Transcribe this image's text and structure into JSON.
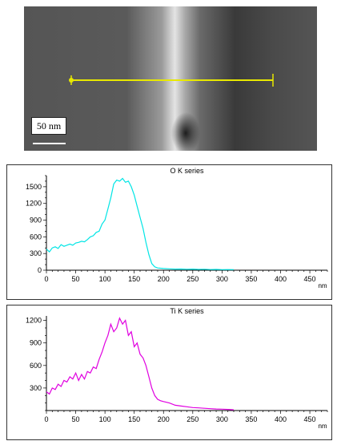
{
  "image": {
    "scale_label": "50 nm",
    "colors": {
      "background": "#4a4a4a",
      "profile_line": "#e8e800",
      "scale_bar": "#ffffff"
    }
  },
  "chart_data": [
    {
      "type": "line",
      "title": "O K series",
      "xlabel": "nm",
      "color": "#00e5e5",
      "xlim": [
        0,
        480
      ],
      "ylim": [
        0,
        1700
      ],
      "x_ticks": [
        0,
        50,
        100,
        150,
        200,
        250,
        300,
        350,
        400,
        450
      ],
      "y_ticks": [
        0,
        300,
        600,
        900,
        1200,
        1500
      ],
      "series": [
        {
          "x": [
            0,
            5,
            10,
            15,
            20,
            25,
            30,
            35,
            40,
            45,
            50,
            55,
            60,
            65,
            70,
            75,
            80,
            85,
            90,
            95,
            100,
            105,
            110,
            115,
            120,
            125,
            130,
            135,
            140,
            145,
            150,
            155,
            160,
            165,
            170,
            175,
            180,
            185,
            190,
            200,
            210,
            220,
            230,
            240,
            250,
            260,
            270,
            280,
            290,
            300,
            310,
            320
          ],
          "y": [
            380,
            330,
            400,
            420,
            390,
            460,
            430,
            450,
            470,
            450,
            490,
            500,
            520,
            510,
            550,
            600,
            620,
            680,
            700,
            830,
            900,
            1100,
            1300,
            1550,
            1620,
            1600,
            1650,
            1580,
            1600,
            1500,
            1350,
            1150,
            950,
            750,
            500,
            280,
            120,
            60,
            40,
            30,
            25,
            20,
            22,
            18,
            20,
            15,
            18,
            12,
            15,
            10,
            12,
            10
          ]
        }
      ]
    },
    {
      "type": "line",
      "title": "Ti K series",
      "xlabel": "nm",
      "color": "#e000e0",
      "xlim": [
        0,
        480
      ],
      "ylim": [
        0,
        1260
      ],
      "x_ticks": [
        0,
        50,
        100,
        150,
        200,
        250,
        300,
        350,
        400,
        450
      ],
      "y_ticks": [
        300,
        600,
        900,
        1200
      ],
      "series": [
        {
          "x": [
            0,
            5,
            10,
            15,
            20,
            25,
            30,
            35,
            40,
            45,
            50,
            55,
            60,
            65,
            70,
            75,
            80,
            85,
            90,
            95,
            100,
            105,
            110,
            115,
            120,
            125,
            130,
            135,
            140,
            145,
            150,
            155,
            160,
            165,
            170,
            175,
            180,
            185,
            190,
            195,
            200,
            210,
            220,
            230,
            240,
            250,
            260,
            270,
            280,
            290,
            300,
            310,
            320
          ],
          "y": [
            250,
            220,
            300,
            280,
            350,
            320,
            400,
            380,
            450,
            420,
            500,
            400,
            480,
            420,
            520,
            500,
            580,
            560,
            680,
            780,
            900,
            1000,
            1150,
            1050,
            1100,
            1230,
            1150,
            1200,
            1000,
            1050,
            850,
            900,
            750,
            700,
            600,
            450,
            300,
            200,
            150,
            130,
            120,
            100,
            70,
            60,
            50,
            40,
            35,
            30,
            25,
            20,
            18,
            15,
            10
          ]
        }
      ]
    }
  ]
}
